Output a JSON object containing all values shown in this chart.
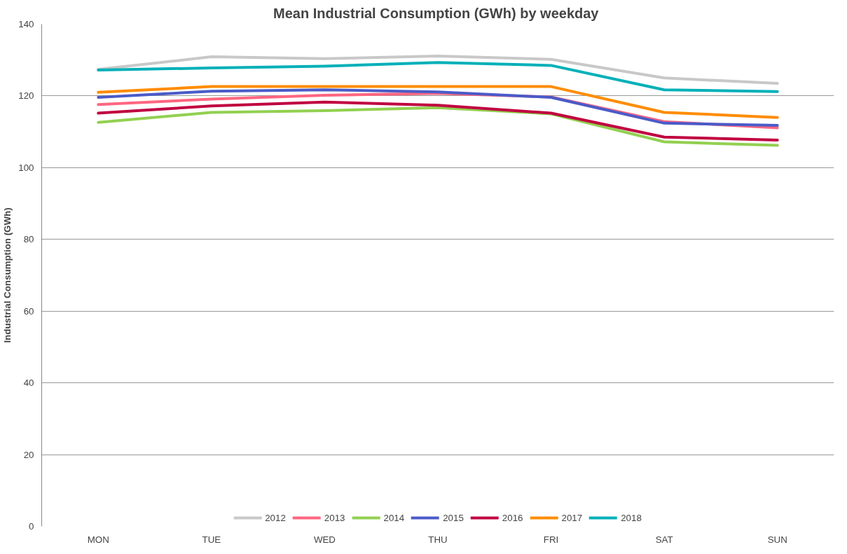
{
  "chart_data": {
    "type": "line",
    "title": "Mean Industrial Consumption (GWh)  by weekday",
    "ylabel": "Industrial Consumption (GWh)",
    "categories": [
      "MON",
      "TUE",
      "WED",
      "THU",
      "FRI",
      "SAT",
      "SUN"
    ],
    "series": [
      {
        "name": "2012",
        "color": "#c8c8c8",
        "values": [
          127.4,
          130.9,
          130.4,
          131.1,
          130.2,
          125.0,
          123.5
        ]
      },
      {
        "name": "2013",
        "color": "#ff6680",
        "values": [
          117.6,
          119.1,
          120.2,
          120.7,
          119.7,
          112.8,
          111.1
        ]
      },
      {
        "name": "2014",
        "color": "#92d050",
        "values": [
          112.6,
          115.4,
          115.9,
          116.7,
          115.0,
          107.2,
          106.2
        ]
      },
      {
        "name": "2015",
        "color": "#4a5bc8",
        "values": [
          119.6,
          121.3,
          121.7,
          121.1,
          119.6,
          112.4,
          111.8
        ]
      },
      {
        "name": "2016",
        "color": "#c00040",
        "values": [
          115.2,
          117.2,
          118.3,
          117.4,
          115.2,
          108.5,
          107.7
        ]
      },
      {
        "name": "2017",
        "color": "#ff8c00",
        "values": [
          121.0,
          122.6,
          122.6,
          122.6,
          122.6,
          115.4,
          114.0
        ]
      },
      {
        "name": "2018",
        "color": "#00b0b8",
        "values": [
          127.2,
          127.8,
          128.3,
          129.3,
          128.5,
          121.7,
          121.2
        ]
      }
    ],
    "ylim": [
      0,
      140
    ],
    "yticks": [
      0,
      20,
      40,
      60,
      80,
      100,
      120,
      140
    ],
    "grid": "y",
    "legend": "bottom",
    "marker": "none",
    "line_style": "solid"
  }
}
